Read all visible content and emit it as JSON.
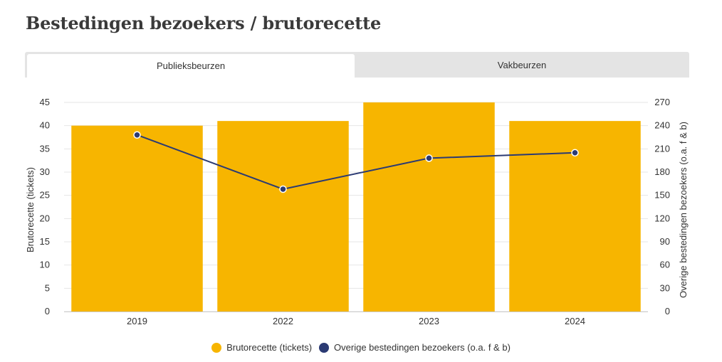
{
  "header": {
    "title": "Bestedingen bezoekers / brutorecette"
  },
  "tabs": [
    {
      "label": "Publieksbeurzen",
      "active": true
    },
    {
      "label": "Vakbeurzen",
      "active": false
    }
  ],
  "colors": {
    "bar": "#f7b500",
    "line": "#2b3a73",
    "grid": "#e6e6e6",
    "tab_bg": "#e4e4e4"
  },
  "chart_data": {
    "type": "bar",
    "categories": [
      "2019",
      "2022",
      "2023",
      "2024"
    ],
    "series": [
      {
        "name": "Brutorecette (tickets)",
        "chart": "bar",
        "axis": "left",
        "values": [
          40,
          41,
          45,
          41
        ]
      },
      {
        "name": "Overige bestedingen bezoekers (o.a. f & b)",
        "chart": "line",
        "axis": "right",
        "values": [
          228,
          158,
          198,
          205
        ]
      }
    ],
    "ylabel": "Brutorecette (tickets)",
    "ylabel_right": "Overige bestedingen bezoekers (o.a. f & b)",
    "ylim": [
      0,
      45
    ],
    "ylim_right": [
      0,
      270
    ],
    "yticks": [
      "0",
      "5",
      "10",
      "15",
      "20",
      "25",
      "30",
      "35",
      "40",
      "45"
    ],
    "yticks_right": [
      "0",
      "30",
      "60",
      "90",
      "120",
      "150",
      "180",
      "210",
      "240",
      "270"
    ],
    "grid": true,
    "legend_position": "bottom"
  }
}
